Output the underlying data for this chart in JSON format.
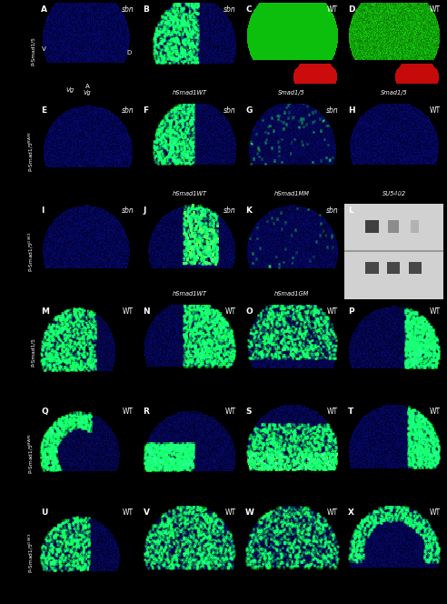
{
  "figure_bg": "#000000",
  "panel_bg": "#000000",
  "row_labels": [
    "P-Smad1/5",
    "P-Smad1/5$^{MAPK}$",
    "P-Smad1/5$^{GSK3}$",
    "P-Smad1/5",
    "P-Smad1/5$^{MAPK}$",
    "P-Smad1/5$^{GSK3}$"
  ],
  "panel_labels": [
    "A",
    "B",
    "C",
    "D",
    "E",
    "F",
    "G",
    "H",
    "I",
    "J",
    "K",
    "L",
    "M",
    "N",
    "O",
    "P",
    "Q",
    "R",
    "S",
    "T",
    "U",
    "V",
    "W",
    "X"
  ],
  "corner_labels": [
    "sbn",
    "sbn",
    "WT",
    "WT",
    "sbn",
    "sbn",
    "sbn",
    "WT",
    "sbn",
    "sbn",
    "sbn",
    "",
    "WT",
    "WT",
    "WT",
    "WT",
    "WT",
    "WT",
    "WT",
    "WT",
    "WT",
    "WT",
    "WT",
    "WT"
  ],
  "sub_labels": [
    "Vg",
    "hSmad1WT",
    "Smad1/5",
    "Smad1/5",
    "",
    "hSmad1WT",
    "hSmad1MM",
    "SU5402",
    "",
    "hSmad1WT",
    "hSmad1GM",
    "",
    "",
    "",
    "",
    "",
    "",
    "",
    "",
    "",
    "",
    "",
    "",
    ""
  ],
  "italic_subs": [
    "hSmad1WT",
    "hSmad1MM",
    "hSmad1GM",
    "Smad1/5",
    "SU5402",
    "Vg"
  ]
}
